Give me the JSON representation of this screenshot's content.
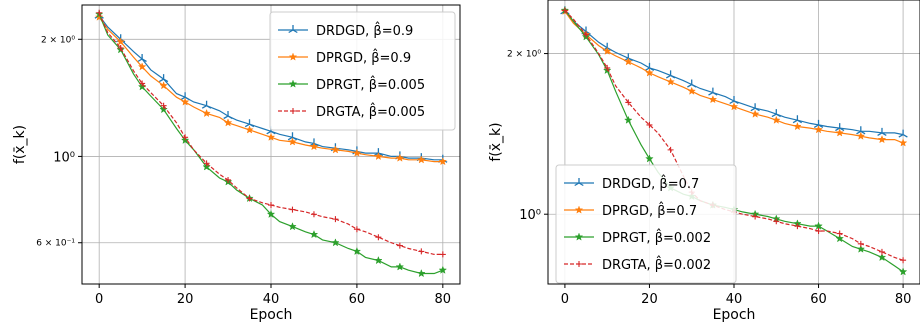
{
  "chart_data": [
    {
      "type": "line",
      "xlabel": "Epoch",
      "ylabel": "f(x̄_k)",
      "yscale": "log",
      "xlim": [
        -4,
        84
      ],
      "ylim": [
        0.47,
        2.45
      ],
      "xticks": [
        0,
        20,
        40,
        60,
        80
      ],
      "xtick_labels": [
        "0",
        "20",
        "40",
        "60",
        "80"
      ],
      "yticks": [
        2.0,
        1.0,
        0.6
      ],
      "ytick_labels": [
        "2 × 10⁰",
        "10⁰",
        "6 × 10⁻¹"
      ],
      "grid": true,
      "legend_position": "upper right",
      "series": [
        {
          "name": "DRDGD, β̂=0.9",
          "color": "#1f77b4",
          "marker": "tri",
          "dash": "solid",
          "x": [
            0,
            2,
            5,
            8,
            10,
            12,
            15,
            18,
            20,
            22,
            25,
            28,
            30,
            32,
            35,
            38,
            40,
            42,
            45,
            48,
            50,
            52,
            55,
            58,
            60,
            62,
            65,
            68,
            70,
            72,
            75,
            78,
            80
          ],
          "y": [
            2.3,
            2.15,
            2.0,
            1.86,
            1.78,
            1.67,
            1.58,
            1.45,
            1.42,
            1.38,
            1.35,
            1.31,
            1.27,
            1.24,
            1.21,
            1.18,
            1.16,
            1.14,
            1.12,
            1.09,
            1.08,
            1.06,
            1.05,
            1.04,
            1.03,
            1.02,
            1.02,
            1.0,
            1.0,
            0.99,
            0.99,
            0.98,
            0.98
          ]
        },
        {
          "name": "DPRGD, β̂=0.9",
          "color": "#ff7f0e",
          "marker": "star",
          "dash": "solid",
          "x": [
            0,
            2,
            5,
            8,
            10,
            12,
            15,
            18,
            20,
            22,
            25,
            28,
            30,
            32,
            35,
            38,
            40,
            42,
            45,
            48,
            50,
            52,
            55,
            58,
            60,
            62,
            65,
            68,
            70,
            72,
            75,
            78,
            80
          ],
          "y": [
            2.28,
            2.12,
            1.97,
            1.8,
            1.7,
            1.61,
            1.52,
            1.42,
            1.38,
            1.34,
            1.29,
            1.26,
            1.22,
            1.2,
            1.17,
            1.14,
            1.12,
            1.1,
            1.09,
            1.07,
            1.06,
            1.05,
            1.04,
            1.03,
            1.02,
            1.01,
            1.0,
            0.99,
            0.99,
            0.98,
            0.98,
            0.97,
            0.97
          ]
        },
        {
          "name": "DPRGT, β̂=0.005",
          "color": "#2ca02c",
          "marker": "star",
          "dash": "solid",
          "x": [
            0,
            2,
            5,
            8,
            10,
            12,
            15,
            18,
            20,
            22,
            25,
            28,
            30,
            32,
            35,
            38,
            40,
            42,
            45,
            48,
            50,
            52,
            55,
            58,
            60,
            62,
            65,
            68,
            70,
            72,
            75,
            78,
            80
          ],
          "y": [
            2.32,
            2.05,
            1.88,
            1.63,
            1.51,
            1.43,
            1.32,
            1.18,
            1.1,
            1.04,
            0.94,
            0.88,
            0.86,
            0.82,
            0.78,
            0.75,
            0.71,
            0.68,
            0.66,
            0.64,
            0.63,
            0.61,
            0.6,
            0.58,
            0.57,
            0.55,
            0.54,
            0.52,
            0.52,
            0.51,
            0.5,
            0.5,
            0.51
          ]
        },
        {
          "name": "DRGTA, β̂=0.005",
          "color": "#d62728",
          "marker": "plus",
          "dash": "dashed",
          "x": [
            0,
            2,
            5,
            8,
            10,
            12,
            15,
            18,
            20,
            22,
            25,
            28,
            30,
            32,
            35,
            38,
            40,
            42,
            45,
            48,
            50,
            52,
            55,
            58,
            60,
            62,
            65,
            68,
            70,
            72,
            75,
            78,
            80
          ],
          "y": [
            2.34,
            2.08,
            1.9,
            1.66,
            1.54,
            1.46,
            1.35,
            1.22,
            1.12,
            1.04,
            0.96,
            0.9,
            0.87,
            0.83,
            0.78,
            0.76,
            0.75,
            0.74,
            0.73,
            0.72,
            0.71,
            0.7,
            0.69,
            0.67,
            0.65,
            0.64,
            0.62,
            0.6,
            0.59,
            0.58,
            0.57,
            0.56,
            0.56
          ]
        }
      ]
    },
    {
      "type": "line",
      "xlabel": "Epoch",
      "ylabel": "f(x̄_k)",
      "yscale": "log",
      "xlim": [
        -4,
        84
      ],
      "ylim": [
        0.74,
        2.52
      ],
      "xticks": [
        0,
        20,
        40,
        60,
        80
      ],
      "xtick_labels": [
        "0",
        "20",
        "40",
        "60",
        "80"
      ],
      "yticks": [
        2.0,
        1.0
      ],
      "ytick_labels": [
        "2 × 10⁰",
        "10⁰"
      ],
      "grid": true,
      "legend_position": "lower left",
      "series": [
        {
          "name": "DRDGD, β̂=0.7",
          "color": "#1f77b4",
          "marker": "tri",
          "dash": "solid",
          "x": [
            0,
            2,
            5,
            8,
            10,
            12,
            15,
            18,
            20,
            22,
            25,
            28,
            30,
            32,
            35,
            38,
            40,
            42,
            45,
            48,
            50,
            52,
            55,
            58,
            60,
            62,
            65,
            68,
            70,
            72,
            75,
            78,
            80
          ],
          "y": [
            2.4,
            2.3,
            2.2,
            2.1,
            2.05,
            2.01,
            1.96,
            1.92,
            1.88,
            1.86,
            1.82,
            1.78,
            1.75,
            1.72,
            1.69,
            1.66,
            1.63,
            1.61,
            1.58,
            1.56,
            1.54,
            1.52,
            1.5,
            1.48,
            1.47,
            1.46,
            1.45,
            1.44,
            1.43,
            1.43,
            1.42,
            1.42,
            1.41
          ]
        },
        {
          "name": "DPRGD, β̂=0.7",
          "color": "#ff7f0e",
          "marker": "star",
          "dash": "solid",
          "x": [
            0,
            2,
            5,
            8,
            10,
            12,
            15,
            18,
            20,
            22,
            25,
            28,
            30,
            32,
            35,
            38,
            40,
            42,
            45,
            48,
            50,
            52,
            55,
            58,
            60,
            62,
            65,
            68,
            70,
            72,
            75,
            78,
            80
          ],
          "y": [
            2.4,
            2.28,
            2.17,
            2.07,
            2.02,
            1.98,
            1.93,
            1.88,
            1.84,
            1.81,
            1.77,
            1.73,
            1.7,
            1.67,
            1.64,
            1.61,
            1.59,
            1.57,
            1.54,
            1.52,
            1.5,
            1.48,
            1.46,
            1.45,
            1.44,
            1.43,
            1.42,
            1.41,
            1.4,
            1.39,
            1.38,
            1.38,
            1.36
          ]
        },
        {
          "name": "DPRGT, β̂=0.002",
          "color": "#2ca02c",
          "marker": "star",
          "dash": "solid",
          "x": [
            0,
            2,
            5,
            8,
            10,
            12,
            15,
            18,
            20,
            22,
            25,
            28,
            30,
            32,
            35,
            38,
            40,
            42,
            45,
            48,
            50,
            52,
            55,
            58,
            60,
            62,
            65,
            68,
            70,
            72,
            75,
            78,
            80
          ],
          "y": [
            2.41,
            2.3,
            2.15,
            1.99,
            1.86,
            1.7,
            1.5,
            1.35,
            1.27,
            1.2,
            1.12,
            1.09,
            1.08,
            1.06,
            1.04,
            1.03,
            1.02,
            1.01,
            1.0,
            0.99,
            0.98,
            0.97,
            0.96,
            0.95,
            0.95,
            0.93,
            0.9,
            0.87,
            0.86,
            0.85,
            0.83,
            0.8,
            0.78
          ]
        },
        {
          "name": "DRGTA, β̂=0.002",
          "color": "#d62728",
          "marker": "plus",
          "dash": "dashed",
          "x": [
            0,
            2,
            5,
            8,
            10,
            12,
            15,
            18,
            20,
            22,
            25,
            28,
            30,
            32,
            35,
            38,
            40,
            42,
            45,
            48,
            50,
            52,
            55,
            58,
            60,
            62,
            65,
            68,
            70,
            72,
            75,
            78,
            80
          ],
          "y": [
            2.41,
            2.32,
            2.17,
            2.0,
            1.88,
            1.74,
            1.62,
            1.52,
            1.47,
            1.42,
            1.32,
            1.18,
            1.1,
            1.06,
            1.04,
            1.02,
            1.01,
            1.0,
            0.99,
            0.98,
            0.97,
            0.96,
            0.95,
            0.94,
            0.93,
            0.93,
            0.92,
            0.9,
            0.88,
            0.87,
            0.85,
            0.83,
            0.82
          ]
        }
      ]
    }
  ]
}
